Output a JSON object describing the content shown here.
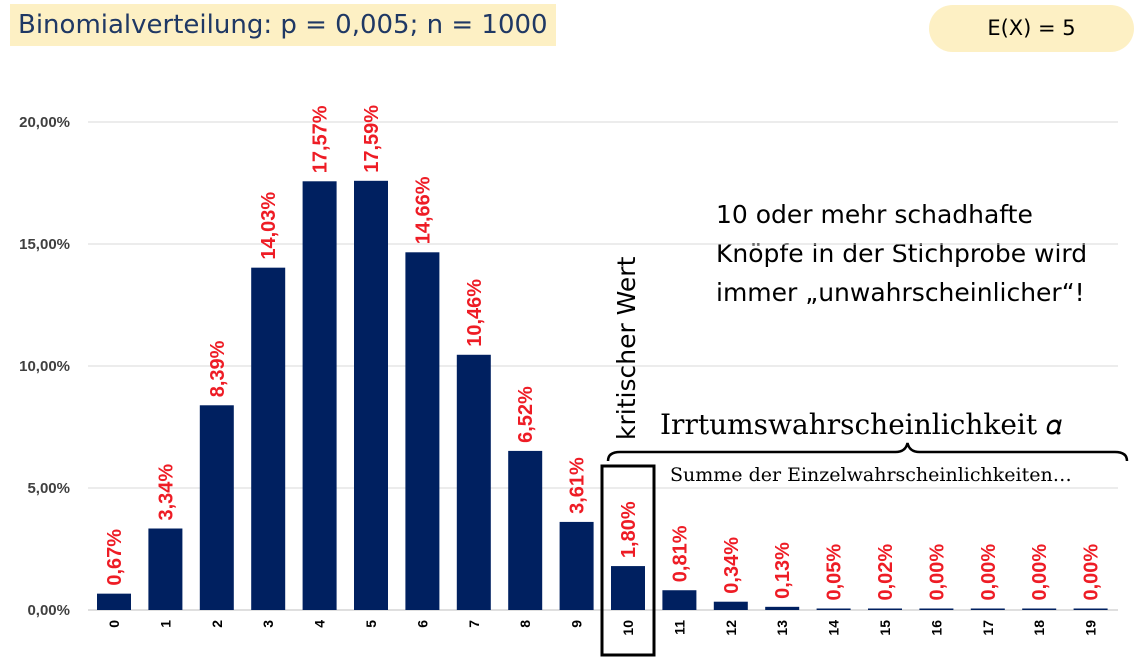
{
  "title": "Binomialverteilung: p = 0,005; n = 1000",
  "expectation": "E(X) = 5",
  "note_lines": [
    "10 oder mehr schadhafte",
    "Knöpfe in der Stichprobe wird",
    "immer „unwahrscheinlicher“!"
  ],
  "critical_label": "kritischer Wert",
  "alpha_label": "Irrtumswahrscheinlichkeit 𝛼",
  "sum_label": "Summe der Einzelwahrscheinlichkeiten…",
  "colors": {
    "bar": "#002060",
    "data_label": "#ee1c25",
    "title_bg": "#fdf0c4",
    "title_text": "#1f3864"
  },
  "chart_data": {
    "type": "bar",
    "categories": [
      "0",
      "1",
      "2",
      "3",
      "4",
      "5",
      "6",
      "7",
      "8",
      "9",
      "10",
      "11",
      "12",
      "13",
      "14",
      "15",
      "16",
      "17",
      "18",
      "19"
    ],
    "values": [
      0.67,
      3.34,
      8.39,
      14.03,
      17.57,
      17.59,
      14.66,
      10.46,
      6.52,
      3.61,
      1.8,
      0.81,
      0.34,
      0.13,
      0.05,
      0.02,
      0.0,
      0.0,
      0.0,
      0.0
    ],
    "data_labels": [
      "0,67%",
      "3,34%",
      "8,39%",
      "14,03%",
      "17,57%",
      "17,59%",
      "14,66%",
      "10,46%",
      "6,52%",
      "3,61%",
      "1,80%",
      "0,81%",
      "0,34%",
      "0,13%",
      "0,05%",
      "0,02%",
      "0,00%",
      "0,00%",
      "0,00%",
      "0,00%"
    ],
    "y_ticks": [
      0,
      5,
      10,
      15,
      20
    ],
    "y_tick_labels": [
      "0,00%",
      "5,00%",
      "10,00%",
      "15,00%",
      "20,00%"
    ],
    "ylim": [
      0,
      20
    ],
    "grid": true,
    "highlighted_category": "10"
  }
}
